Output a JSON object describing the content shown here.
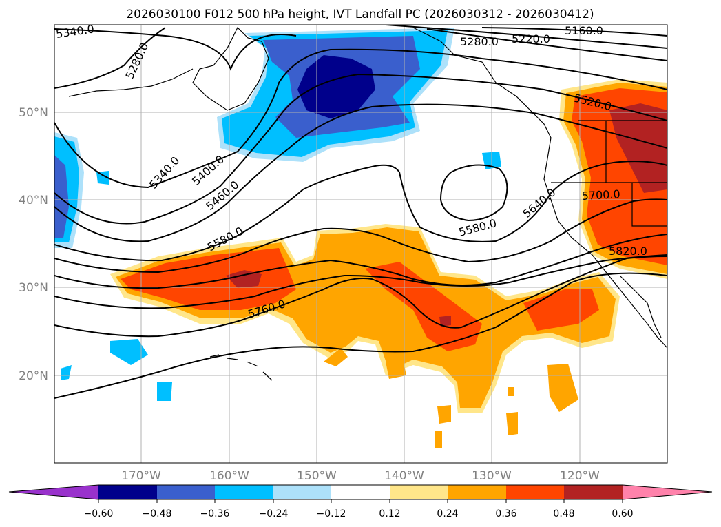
{
  "title": "2026030100 F012 500 hPa height, IVT Landfall PC (2026030312 - 2026030412)",
  "map": {
    "lat_labels": [
      "50°N",
      "40°N",
      "30°N",
      "20°N"
    ],
    "lon_labels": [
      "170°W",
      "160°W",
      "150°W",
      "140°W",
      "130°W",
      "120°W"
    ],
    "contour_labels": [
      "5340.0",
      "5280.0",
      "5280.0",
      "5220.0",
      "5160.0",
      "5520.0",
      "5340.0",
      "5400.0",
      "5460.0",
      "5580.0",
      "5580.0",
      "5640.0",
      "5700.0",
      "5760.0",
      "5820.0"
    ]
  },
  "colorbar": {
    "tick_labels": [
      "−0.60",
      "−0.48",
      "−0.36",
      "−0.24",
      "−0.12",
      "0.12",
      "0.24",
      "0.36",
      "0.48",
      "0.60"
    ],
    "colors": [
      "#9932CC",
      "#00008B",
      "#3A5FCD",
      "#00BFFF",
      "#ADE1FA",
      "#FFFFFF",
      "#FFE68A",
      "#FFA500",
      "#FF4500",
      "#B22222",
      "#FF82AB"
    ]
  },
  "chart_data": {
    "type": "heatmap",
    "title": "2026030100 F012 500 hPa height, IVT Landfall PC (2026030312 - 2026030412)",
    "contour_field": "500 hPa height",
    "contour_levels": [
      5160,
      5220,
      5280,
      5340,
      5400,
      5460,
      5520,
      5580,
      5640,
      5700,
      5760,
      5820
    ],
    "fill_field": "IVT Landfall PC",
    "fill_levels": [
      -0.6,
      -0.48,
      -0.36,
      -0.24,
      -0.12,
      0.12,
      0.24,
      0.36,
      0.48,
      0.6
    ],
    "lon_range": [
      -180,
      -110
    ],
    "lat_range": [
      10,
      60
    ],
    "xticks": [
      -170,
      -160,
      -150,
      -140,
      -130,
      -120
    ],
    "yticks": [
      20,
      30,
      40,
      50
    ]
  }
}
